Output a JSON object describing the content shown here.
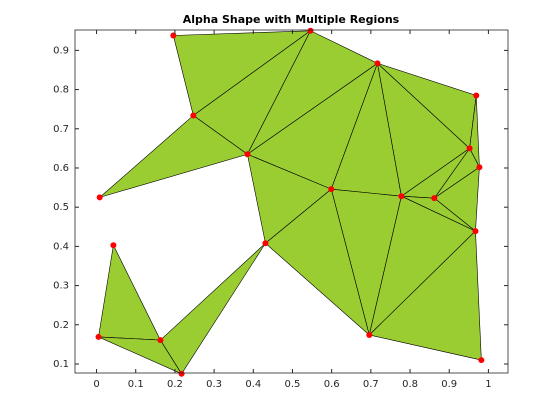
{
  "chart_data": {
    "type": "alphashape",
    "title": "Alpha Shape with Multiple Regions",
    "x": [
      0.196,
      0.546,
      0.717,
      0.969,
      0.247,
      0.385,
      0.952,
      0.977,
      0.008,
      0.599,
      0.778,
      0.862,
      0.967,
      0.431,
      0.043,
      0.005,
      0.163,
      0.696,
      0.217,
      0.982
    ],
    "y": [
      0.938,
      0.95,
      0.867,
      0.785,
      0.734,
      0.635,
      0.65,
      0.602,
      0.525,
      0.546,
      0.528,
      0.523,
      0.439,
      0.408,
      0.403,
      0.169,
      0.161,
      0.174,
      0.075,
      0.11
    ],
    "triangles": [
      [
        0,
        1,
        4
      ],
      [
        4,
        1,
        5
      ],
      [
        5,
        1,
        2
      ],
      [
        8,
        4,
        5
      ],
      [
        5,
        2,
        9
      ],
      [
        2,
        10,
        9
      ],
      [
        2,
        6,
        10
      ],
      [
        2,
        3,
        6
      ],
      [
        3,
        7,
        6
      ],
      [
        6,
        7,
        11
      ],
      [
        6,
        11,
        10
      ],
      [
        7,
        12,
        11
      ],
      [
        10,
        11,
        12
      ],
      [
        9,
        10,
        17
      ],
      [
        10,
        12,
        17
      ],
      [
        12,
        19,
        17
      ],
      [
        5,
        9,
        13
      ],
      [
        13,
        9,
        17
      ],
      [
        14,
        15,
        16
      ],
      [
        15,
        16,
        18
      ],
      [
        16,
        13,
        18
      ]
    ],
    "fill_color": "#9acd32",
    "edge_color": "#000000",
    "point_color": "#ff0000",
    "xlim": [
      -0.055,
      1.05
    ],
    "ylim": [
      0.077,
      0.952
    ],
    "xticks": [
      0,
      0.1,
      0.2,
      0.3,
      0.4,
      0.5,
      0.6,
      0.7,
      0.8,
      0.9,
      1
    ],
    "yticks": [
      0.1,
      0.2,
      0.3,
      0.4,
      0.5,
      0.6,
      0.7,
      0.8,
      0.9
    ]
  }
}
